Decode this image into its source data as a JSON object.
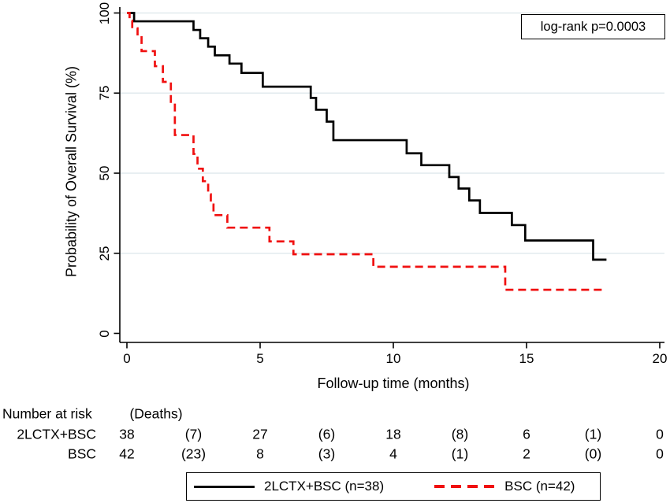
{
  "annotation": {
    "logrank_label": "log-rank p=0.0003"
  },
  "chart_data": {
    "type": "line",
    "subtype": "kaplan-meier-step",
    "title": "",
    "xlabel": "Follow-up time (months)",
    "ylabel": "Probability of Overall Survival (%)",
    "xlim": [
      0,
      20
    ],
    "ylim": [
      0,
      100
    ],
    "x_ticks": [
      0,
      5,
      10,
      15,
      20
    ],
    "y_ticks": [
      0,
      25,
      50,
      75,
      100
    ],
    "grid": "horizontal-light",
    "legend_position": "bottom",
    "series": [
      {
        "name": "2LCTX+BSC (n=38)",
        "color": "#000000",
        "style": "solid",
        "start": [
          0,
          100
        ],
        "points": [
          [
            0.27,
            97.4
          ],
          [
            2.5,
            94.7
          ],
          [
            2.75,
            92.1
          ],
          [
            3.05,
            89.5
          ],
          [
            3.3,
            86.8
          ],
          [
            3.85,
            84.2
          ],
          [
            4.3,
            81.3
          ],
          [
            5.1,
            77.0
          ],
          [
            6.9,
            73.5
          ],
          [
            7.1,
            69.8
          ],
          [
            7.5,
            66.1
          ],
          [
            7.75,
            60.3
          ],
          [
            10.5,
            56.2
          ],
          [
            11.05,
            52.5
          ],
          [
            12.1,
            48.8
          ],
          [
            12.45,
            45.2
          ],
          [
            12.85,
            41.5
          ],
          [
            13.25,
            37.6
          ],
          [
            14.45,
            33.8
          ],
          [
            14.95,
            29.0
          ],
          [
            17.5,
            23.0
          ]
        ],
        "end_x": 18.0
      },
      {
        "name": "BSC (n=42)",
        "color": "#f01010",
        "style": "dashed",
        "start": [
          0,
          100
        ],
        "points": [
          [
            0.1,
            97.6
          ],
          [
            0.2,
            95.2
          ],
          [
            0.4,
            92.9
          ],
          [
            0.55,
            88.1
          ],
          [
            1.05,
            83.4
          ],
          [
            1.35,
            78.5
          ],
          [
            1.65,
            71.8
          ],
          [
            1.8,
            61.9
          ],
          [
            2.5,
            56.0
          ],
          [
            2.65,
            51.4
          ],
          [
            2.85,
            47.5
          ],
          [
            3.05,
            43.4
          ],
          [
            3.15,
            40.2
          ],
          [
            3.25,
            36.9
          ],
          [
            3.77,
            33.0
          ],
          [
            5.35,
            28.7
          ],
          [
            6.25,
            24.7
          ],
          [
            9.25,
            20.8
          ],
          [
            14.2,
            13.6
          ]
        ],
        "end_x": 17.9
      }
    ]
  },
  "risk_table": {
    "number_at_risk_label": "Number at risk",
    "deaths_label": "(Deaths)",
    "rows": [
      {
        "label": "2LCTX+BSC",
        "values": [
          "38",
          "(7)",
          "27",
          "(6)",
          "18",
          "(8)",
          "6",
          "(1)",
          "0"
        ]
      },
      {
        "label": "BSC",
        "values": [
          "42",
          "(23)",
          "8",
          "(3)",
          "4",
          "(1)",
          "2",
          "(0)",
          "0"
        ]
      }
    ]
  },
  "legend": {
    "items": [
      {
        "label": "2LCTX+BSC (n=38)",
        "style": "solid",
        "color": "#000000"
      },
      {
        "label": "BSC (n=42)",
        "style": "dashed",
        "color": "#f01010"
      }
    ]
  },
  "colors": {
    "curve_treatment": "#000000",
    "curve_bsc": "#f01010",
    "gridline": "#e1eaee",
    "axis": "#000000",
    "background": "#ffffff"
  }
}
